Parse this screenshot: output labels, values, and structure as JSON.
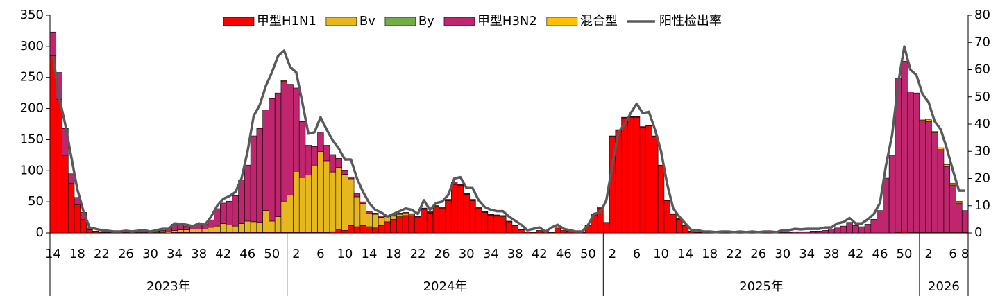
{
  "chart_data": {
    "type": "bar",
    "legend": "top",
    "categories": [
      "14",
      null,
      null,
      null,
      "18",
      null,
      null,
      null,
      "22",
      null,
      null,
      null,
      "26",
      null,
      null,
      null,
      "30",
      null,
      null,
      null,
      "34",
      null,
      null,
      null,
      "38",
      null,
      null,
      null,
      "42",
      null,
      null,
      null,
      "46",
      null,
      null,
      null,
      "50",
      null,
      null,
      null,
      "2",
      null,
      null,
      null,
      "6",
      null,
      null,
      null,
      "10",
      null,
      null,
      null,
      "14",
      null,
      null,
      null,
      "18",
      null,
      null,
      null,
      "22",
      null,
      null,
      null,
      "26",
      null,
      null,
      null,
      "30",
      null,
      null,
      null,
      "34",
      null,
      null,
      null,
      "38",
      null,
      null,
      null,
      "42",
      null,
      null,
      null,
      "46",
      null,
      null,
      null,
      "50",
      null,
      null,
      null,
      "2",
      null,
      null,
      null,
      "6",
      null,
      null,
      null,
      "10",
      null,
      null,
      null,
      "14",
      null,
      null,
      null,
      "18",
      null,
      null,
      null,
      "22",
      null,
      null,
      null,
      "26",
      null,
      null,
      null,
      "30",
      null,
      null,
      null,
      "34",
      null,
      null,
      null,
      "38",
      null,
      null,
      null,
      "42",
      null,
      null,
      null,
      "46",
      null,
      null,
      null,
      "50",
      null,
      null,
      null,
      "2",
      null,
      null,
      null,
      "6",
      null,
      "8"
    ],
    "groups": [
      "2023年",
      "2024年",
      "2025年",
      "2026"
    ],
    "ylim": [
      0,
      350
    ],
    "yticks": [
      0,
      50,
      100,
      150,
      200,
      250,
      300,
      350
    ],
    "y2lim": [
      0,
      80
    ],
    "y2ticks": [
      0,
      10,
      20,
      30,
      40,
      50,
      60,
      70,
      80
    ],
    "series": [
      {
        "name": "甲型H1N1",
        "color": "#ff0000",
        "values": [
          285,
          215,
          125,
          80,
          45,
          22,
          5,
          2,
          1,
          1,
          0,
          0,
          0,
          0,
          0,
          0,
          0,
          0,
          0,
          0,
          1,
          1,
          1,
          1,
          1,
          1,
          1,
          1,
          1,
          1,
          1,
          1,
          1,
          1,
          1,
          1,
          1,
          1,
          1,
          1,
          1,
          1,
          1,
          1,
          1,
          1,
          2,
          5,
          4,
          12,
          10,
          12,
          10,
          8,
          12,
          18,
          22,
          26,
          28,
          28,
          25,
          38,
          32,
          42,
          40,
          52,
          78,
          76,
          62,
          52,
          40,
          33,
          28,
          27,
          26,
          18,
          12,
          5,
          2,
          1,
          4,
          3,
          1,
          8,
          4,
          3,
          2,
          1,
          12,
          28,
          40,
          16,
          155,
          165,
          185,
          186,
          186,
          170,
          172,
          155,
          108,
          52,
          30,
          22,
          12,
          2,
          1,
          0,
          0,
          0,
          0,
          0,
          0,
          0,
          0,
          0,
          0,
          0,
          0,
          0,
          0,
          0,
          0,
          0,
          0,
          0,
          0,
          0,
          0,
          0,
          0,
          0,
          0,
          0,
          0,
          0,
          0,
          0,
          0,
          1,
          2,
          1,
          1,
          1,
          1,
          1,
          1,
          1,
          1,
          1,
          1
        ]
      },
      {
        "name": "Bv",
        "color": "#e6b820",
        "values": [
          0,
          0,
          0,
          0,
          0,
          0,
          0,
          0,
          0,
          0,
          0,
          0,
          0,
          0,
          0,
          0,
          0,
          1,
          1,
          2,
          3,
          4,
          4,
          5,
          5,
          5,
          8,
          10,
          14,
          12,
          10,
          14,
          18,
          17,
          16,
          35,
          18,
          25,
          50,
          60,
          98,
          88,
          92,
          108,
          130,
          115,
          96,
          100,
          90,
          75,
          48,
          35,
          22,
          22,
          13,
          8,
          5,
          4,
          3,
          2,
          1,
          1,
          1,
          1,
          1,
          1,
          1,
          1,
          1,
          1,
          1,
          1,
          1,
          1,
          1,
          0,
          0,
          0,
          0,
          0,
          0,
          0,
          0,
          0,
          0,
          0,
          0,
          0,
          0,
          0,
          0,
          0,
          0,
          0,
          0,
          0,
          0,
          0,
          0,
          0,
          0,
          0,
          0,
          0,
          0,
          0,
          0,
          0,
          0,
          0,
          0,
          0,
          0,
          0,
          0,
          0,
          0,
          0,
          0,
          0,
          0,
          0,
          0,
          0,
          0,
          0,
          0,
          0,
          0,
          0,
          0,
          0,
          0,
          0,
          0,
          0,
          0,
          0,
          0,
          0,
          0,
          0,
          0,
          0,
          0,
          0,
          0,
          0,
          0,
          0,
          0
        ]
      },
      {
        "name": "By",
        "color": "#70ad47",
        "values": [
          0,
          0,
          0,
          0,
          0,
          0,
          0,
          0,
          0,
          0,
          0,
          0,
          0,
          0,
          0,
          0,
          0,
          0,
          0,
          0,
          0,
          0,
          0,
          0,
          0,
          0,
          0,
          0,
          0,
          0,
          0,
          0,
          0,
          0,
          0,
          0,
          0,
          0,
          0,
          0,
          0,
          0,
          0,
          0,
          0,
          0,
          0,
          0,
          0,
          0,
          0,
          0,
          0,
          0,
          0,
          0,
          0,
          0,
          0,
          0,
          0,
          0,
          0,
          0,
          0,
          0,
          0,
          0,
          0,
          0,
          0,
          0,
          0,
          0,
          0,
          0,
          0,
          0,
          0,
          0,
          0,
          0,
          0,
          0,
          0,
          0,
          0,
          0,
          0,
          0,
          0,
          0,
          0,
          0,
          0,
          0,
          0,
          0,
          0,
          0,
          0,
          0,
          0,
          0,
          0,
          0,
          0,
          0,
          0,
          0,
          0,
          0,
          0,
          0,
          0,
          0,
          0,
          0,
          0,
          0,
          0,
          0,
          0,
          0,
          0,
          0,
          0,
          0,
          0,
          0,
          0,
          0,
          0,
          0,
          0,
          0,
          0,
          0,
          0,
          0,
          0,
          0,
          0,
          0,
          0,
          0,
          0,
          0,
          0,
          0,
          0
        ]
      },
      {
        "name": "甲型H3N2",
        "color": "#c0266e",
        "values": [
          38,
          43,
          43,
          15,
          12,
          11,
          3,
          1,
          1,
          1,
          1,
          2,
          1,
          2,
          1,
          1,
          2,
          2,
          3,
          5,
          10,
          8,
          6,
          4,
          8,
          8,
          12,
          28,
          33,
          38,
          49,
          70,
          90,
          138,
          151,
          162,
          197,
          199,
          193,
          178,
          134,
          90,
          48,
          30,
          30,
          25,
          28,
          15,
          7,
          3,
          5,
          3,
          2,
          2,
          2,
          2,
          2,
          2,
          2,
          1,
          1,
          1,
          1,
          1,
          1,
          1,
          3,
          1,
          1,
          1,
          1,
          1,
          1,
          1,
          1,
          1,
          1,
          1,
          0,
          0,
          0,
          0,
          0,
          0,
          0,
          0,
          0,
          0,
          0,
          2,
          2,
          1,
          1,
          1,
          1,
          1,
          1,
          1,
          1,
          1,
          1,
          1,
          1,
          1,
          1,
          1,
          1,
          1,
          1,
          0,
          1,
          0,
          1,
          0,
          1,
          0,
          1,
          1,
          1,
          1,
          1,
          1,
          2,
          2,
          2,
          3,
          3,
          4,
          6,
          8,
          11,
          17,
          12,
          10,
          14,
          22,
          36,
          88,
          125,
          247,
          274,
          226,
          224,
          180,
          178,
          160,
          133,
          106,
          76,
          47,
          34
        ]
      },
      {
        "name": "混合型",
        "color": "#ffc000",
        "values": [
          0,
          0,
          0,
          0,
          0,
          0,
          0,
          0,
          0,
          0,
          0,
          0,
          0,
          0,
          0,
          0,
          0,
          0,
          0,
          0,
          0,
          0,
          0,
          0,
          0,
          0,
          0,
          0,
          0,
          0,
          0,
          0,
          0,
          0,
          0,
          0,
          0,
          0,
          1,
          0,
          0,
          1,
          0,
          0,
          0,
          0,
          0,
          0,
          0,
          0,
          0,
          0,
          0,
          0,
          0,
          0,
          0,
          0,
          0,
          0,
          0,
          0,
          0,
          0,
          0,
          0,
          0,
          0,
          0,
          0,
          0,
          0,
          0,
          0,
          0,
          0,
          0,
          0,
          0,
          0,
          0,
          0,
          0,
          0,
          0,
          0,
          0,
          0,
          0,
          0,
          0,
          0,
          0,
          0,
          0,
          0,
          0,
          0,
          0,
          0,
          0,
          0,
          0,
          0,
          0,
          0,
          0,
          0,
          0,
          0,
          0,
          0,
          0,
          0,
          0,
          0,
          0,
          0,
          0,
          0,
          0,
          0,
          0,
          0,
          0,
          0,
          0,
          0,
          0,
          0,
          0,
          0,
          0,
          0,
          0,
          0,
          0,
          0,
          0,
          0,
          0,
          0,
          0,
          2,
          3,
          2,
          3,
          3,
          3,
          3,
          1
        ]
      },
      {
        "name": "阳性检出率",
        "color": "#595959",
        "type": "line",
        "axis": "y2",
        "values": [
          65,
          50,
          40,
          28,
          16,
          8,
          2,
          1.5,
          1,
          0.8,
          0.5,
          0.5,
          0.8,
          0.5,
          0.8,
          1,
          0.5,
          1,
          1.5,
          1.5,
          3.5,
          3.3,
          3,
          2.5,
          3.5,
          3,
          6,
          10,
          12.5,
          13.5,
          15,
          20,
          30,
          43,
          47,
          54,
          59,
          65,
          67,
          61,
          59,
          48,
          36.5,
          37,
          42.5,
          38,
          34,
          31,
          27,
          27,
          20,
          15,
          11,
          8.5,
          7.5,
          6,
          7,
          8,
          9,
          8.5,
          7,
          12,
          8.5,
          11,
          11.5,
          14,
          20,
          20.5,
          16.5,
          16.5,
          12,
          9.5,
          8.5,
          8,
          8,
          6,
          4.5,
          3,
          1,
          1.5,
          2,
          0.5,
          2,
          3,
          1.5,
          1,
          0.5,
          0.5,
          3,
          7,
          7.5,
          12,
          25,
          37,
          40,
          44,
          47.5,
          44,
          44.5,
          38,
          30,
          18,
          9,
          6,
          3.5,
          1,
          1,
          0.5,
          0.5,
          0.3,
          0.5,
          0.5,
          0.3,
          0.5,
          0.3,
          0.5,
          0.3,
          0.5,
          0.5,
          0.3,
          1,
          1,
          1.5,
          1.3,
          1.5,
          1.5,
          1.5,
          2,
          2,
          3.5,
          4,
          5.5,
          3.5,
          3.5,
          5,
          7,
          11,
          25,
          36,
          55,
          68.5,
          60,
          58,
          51,
          48,
          41,
          38,
          31,
          23,
          15.5,
          15.5
        ]
      }
    ]
  }
}
